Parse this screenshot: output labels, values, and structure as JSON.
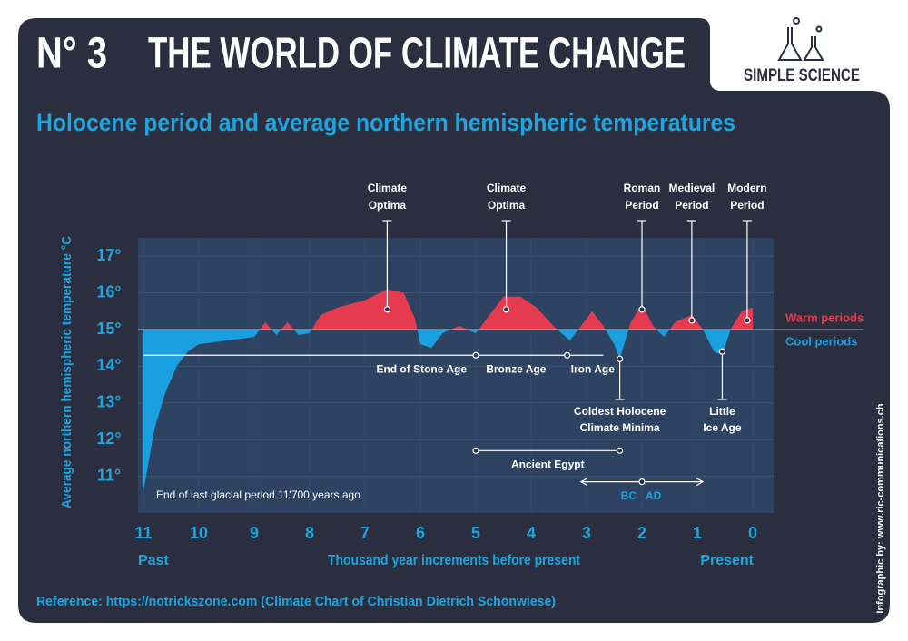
{
  "header": {
    "number": "N° 3",
    "title": "THE WORLD OF CLIMATE CHANGE",
    "brand": "SIMPLE SCIENCE"
  },
  "chart_data": {
    "type": "area",
    "title": "Holocene period and average northern hemispheric temperatures",
    "y_label": "Average northern hemispheric temperature °C",
    "x_label": "Thousand year increments before present",
    "x_start_label": "Past",
    "x_end_label": "Present",
    "note": "End of last glacial period 11'700 years ago",
    "xlim": [
      11,
      0
    ],
    "xticks": [
      11,
      10,
      9,
      8,
      7,
      6,
      5,
      4,
      3,
      2,
      1,
      0
    ],
    "ylim": [
      10,
      17.5
    ],
    "yticks": [
      {
        "value": 17,
        "label": "17°"
      },
      {
        "value": 16,
        "label": "16°"
      },
      {
        "value": 15,
        "label": "15°"
      },
      {
        "value": 14,
        "label": "14°"
      },
      {
        "value": 13,
        "label": "13°"
      },
      {
        "value": 12,
        "label": "12°"
      },
      {
        "value": 11,
        "label": "11°"
      }
    ],
    "grid": true,
    "baseline": 15,
    "legend": [
      {
        "name": "Warm periods",
        "color": "#e63b4f"
      },
      {
        "name": "Cool periods",
        "color": "#1a9fe0"
      }
    ],
    "x": [
      11,
      10.8,
      10.6,
      10.4,
      10.2,
      10,
      9.5,
      9,
      8.8,
      8.6,
      8.4,
      8.2,
      8,
      7.8,
      7.5,
      7,
      6.6,
      6.3,
      6.1,
      6,
      5.8,
      5.6,
      5.3,
      5,
      4.8,
      4.5,
      4.2,
      3.9,
      3.6,
      3.3,
      3.1,
      2.9,
      2.7,
      2.5,
      2.4,
      2.2,
      2,
      1.8,
      1.6,
      1.4,
      1.1,
      0.9,
      0.7,
      0.55,
      0.4,
      0.2,
      0
    ],
    "values": [
      10.6,
      12.3,
      13.3,
      14,
      14.4,
      14.6,
      14.7,
      14.8,
      15.2,
      14.85,
      15.2,
      14.85,
      14.9,
      15.4,
      15.6,
      15.8,
      16.1,
      16,
      15.3,
      14.6,
      14.5,
      14.9,
      15.1,
      14.9,
      15.3,
      15.9,
      15.9,
      15.6,
      15.1,
      14.7,
      15.1,
      15.5,
      15.1,
      14.6,
      14.2,
      15.2,
      15.7,
      15.1,
      14.8,
      15.2,
      15.4,
      15,
      14.4,
      14.3,
      15,
      15.5,
      15.6
    ],
    "annotations": [
      {
        "label": [
          "Climate",
          "Optima"
        ],
        "x": 6.6,
        "y": 15.55,
        "dir": "up"
      },
      {
        "label": [
          "Climate",
          "Optima"
        ],
        "x": 4.45,
        "y": 15.55,
        "dir": "up"
      },
      {
        "label": [
          "Roman",
          "Period"
        ],
        "x": 2,
        "y": 15.55,
        "dir": "up"
      },
      {
        "label": [
          "Medieval",
          "Period"
        ],
        "x": 1.1,
        "y": 15.25,
        "dir": "up"
      },
      {
        "label": [
          "Modern",
          "Period"
        ],
        "x": 0.1,
        "y": 15.25,
        "dir": "up"
      },
      {
        "label": [
          "Coldest Holocene",
          "Climate Minima"
        ],
        "x": 2.4,
        "y": 14.2,
        "dir": "down"
      },
      {
        "label": [
          "Little",
          "Ice Age"
        ],
        "x": 0.55,
        "y": 14.4,
        "dir": "down"
      }
    ],
    "eras": {
      "labels": [
        "End of Stone Age",
        "Bronze Age",
        "Iron Age"
      ],
      "from": 11,
      "to": 2.7,
      "stops": [
        5,
        3.35
      ],
      "y": 14.3
    },
    "egypt": {
      "label": "Ancient Egypt",
      "from": 5,
      "to": 2.4,
      "y": 11.7
    },
    "era_split": {
      "labels": [
        "BC",
        "AD"
      ],
      "x": 2,
      "from": 3.1,
      "to": 0.9,
      "y": 10.85
    }
  },
  "footer": {
    "reference": "Reference: https://notrickszone.com (Climate Chart of Christian Dietrich Schönwiese)",
    "credit": "Infographic by: www.ric-communications.ch"
  }
}
